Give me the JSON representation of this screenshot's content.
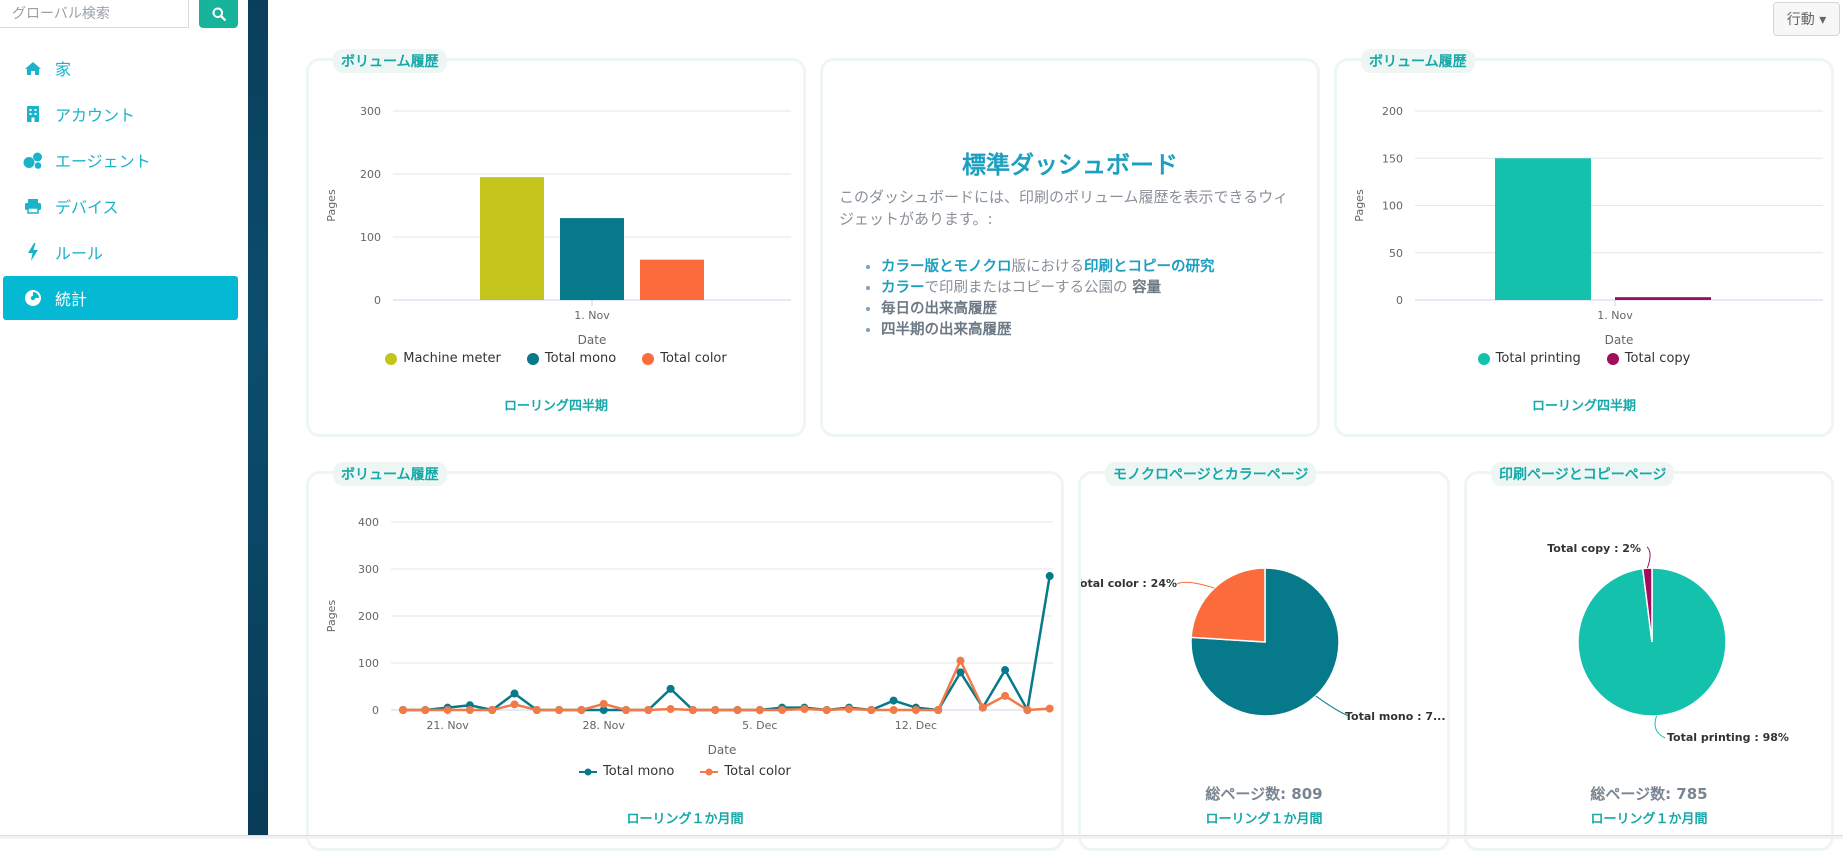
{
  "search": {
    "placeholder": "グローバル検索"
  },
  "sidebar": {
    "items": [
      {
        "label": "家",
        "icon": "home-icon"
      },
      {
        "label": "アカウント",
        "icon": "building-icon"
      },
      {
        "label": "エージェント",
        "icon": "users-icon"
      },
      {
        "label": "デバイス",
        "icon": "printer-icon"
      },
      {
        "label": "ルール",
        "icon": "bolt-icon"
      },
      {
        "label": "統計",
        "icon": "pie-chart-icon",
        "active": true
      }
    ]
  },
  "header": {
    "actions_label": "行動 ▾"
  },
  "colors": {
    "accent": "#05b8d4",
    "teal": "#17b39a"
  },
  "cards": {
    "vol1": {
      "title": "ボリューム履歴",
      "footer": "ローリング四半期"
    },
    "info": {
      "title": "標準ダッシュボード",
      "desc": "このダッシュボードには、印刷のボリューム履歴を表示できるウィジェットがあります。:",
      "b1_p1": "カラー版",
      "b1_p2": "と",
      "b1_p3": "モノクロ",
      "b1_p4": "版における",
      "b1_p5": "印刷",
      "b1_p6": "と",
      "b1_p7": "コピー",
      "b1_p8": "の研究",
      "b2_p1": "カラー",
      "b2_p2": "で印刷またはコピーする公園の",
      "b2_p3": "容量",
      "b3": "毎日の出来高履歴",
      "b4": "四半期の出来高履歴"
    },
    "vol2": {
      "title": "ボリューム履歴",
      "footer": "ローリング四半期"
    },
    "vol3": {
      "title": "ボリューム履歴",
      "footer": "ローリング１か月間"
    },
    "pie1": {
      "title": "モノクロページとカラーページ",
      "total": "総ページ数: 809",
      "footer": "ローリング１か月間"
    },
    "pie2": {
      "title": "印刷ページとコピーページ",
      "total": "総ページ数: 785",
      "footer": "ローリング１か月間"
    }
  },
  "chart_data": [
    {
      "type": "bar",
      "categories": [
        "1. Nov"
      ],
      "series": [
        {
          "name": "Machine meter",
          "values": [
            195
          ],
          "color": "#c3c41c"
        },
        {
          "name": "Total mono",
          "values": [
            130
          ],
          "color": "#067a8a"
        },
        {
          "name": "Total color",
          "values": [
            64
          ],
          "color": "#fb6b3c"
        }
      ],
      "xlabel": "Date",
      "ylabel": "Pages",
      "ylim": [
        0,
        300
      ],
      "yticks": [
        0,
        100,
        200,
        300
      ],
      "grid": true,
      "legend": "bottom"
    },
    {
      "type": "bar",
      "categories": [
        "1. Nov"
      ],
      "series": [
        {
          "name": "Total printing",
          "values": [
            150
          ],
          "color": "#14c1ad"
        },
        {
          "name": "Total copy",
          "values": [
            3
          ],
          "color": "#a10c5c"
        }
      ],
      "xlabel": "Date",
      "ylabel": "Pages",
      "ylim": [
        0,
        200
      ],
      "yticks": [
        0,
        50,
        100,
        150,
        200
      ],
      "grid": true,
      "legend": "bottom"
    },
    {
      "type": "line",
      "x_ticks": [
        "21. Nov",
        "28. Nov",
        "5. Dec",
        "12. Dec"
      ],
      "series": [
        {
          "name": "Total mono",
          "color": "#067a8a",
          "values": [
            0,
            0,
            5,
            10,
            0,
            35,
            0,
            0,
            0,
            0,
            0,
            0,
            45,
            0,
            0,
            0,
            0,
            5,
            5,
            0,
            5,
            0,
            20,
            5,
            0,
            80,
            5,
            85,
            0,
            285
          ]
        },
        {
          "name": "Total color",
          "color": "#f27a48",
          "values": [
            0,
            0,
            0,
            0,
            0,
            12,
            0,
            0,
            0,
            13,
            0,
            0,
            2,
            0,
            0,
            0,
            0,
            0,
            2,
            0,
            2,
            0,
            0,
            0,
            0,
            105,
            5,
            30,
            0,
            3
          ]
        }
      ],
      "xlabel": "Date",
      "ylabel": "Pages",
      "ylim": [
        0,
        400
      ],
      "yticks": [
        0,
        100,
        200,
        300,
        400
      ],
      "grid": true,
      "legend": "bottom"
    },
    {
      "type": "pie",
      "slices": [
        {
          "label": "Total mono : 7...",
          "value": 76,
          "color": "#067a8a"
        },
        {
          "label": "Total color : 24%",
          "value": 24,
          "color": "#fb6b3c"
        }
      ]
    },
    {
      "type": "pie",
      "slices": [
        {
          "label": "Total printing : 98%",
          "value": 98,
          "color": "#14c1ad"
        },
        {
          "label": "Total copy : 2%",
          "value": 2,
          "color": "#a10c5c"
        }
      ]
    }
  ]
}
